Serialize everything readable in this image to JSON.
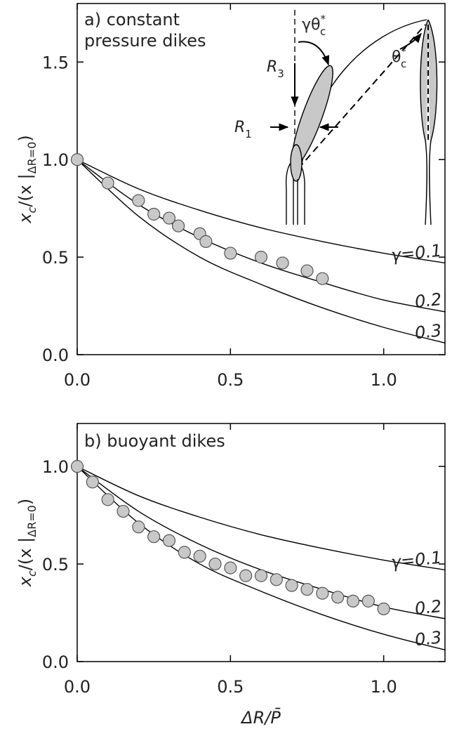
{
  "chart_data": [
    {
      "type": "scatter",
      "title_lines": [
        "a) constant",
        "pressure dikes"
      ],
      "ylabel_parts": [
        "x",
        "c",
        "/(x |",
        "ΔR=0",
        ")"
      ],
      "xlim": [
        0,
        1.2
      ],
      "ylim": [
        0,
        1.8
      ],
      "xticks": [
        {
          "value": 0,
          "label": "0.0"
        },
        {
          "value": 0.5,
          "label": "0.5"
        },
        {
          "value": 1,
          "label": "1.0"
        }
      ],
      "yticks": [
        {
          "value": 0,
          "label": "0.0"
        },
        {
          "value": 0.5,
          "label": "0.5"
        },
        {
          "value": 1,
          "label": "1.0"
        },
        {
          "value": 1.5,
          "label": "1.5"
        }
      ],
      "series": [
        {
          "name": "γ=0.1",
          "type": "line",
          "color": "#000000",
          "x": [
            0,
            0.2,
            0.4,
            0.6,
            0.8,
            1.0,
            1.2
          ],
          "values": [
            1,
            0.85,
            0.74,
            0.65,
            0.58,
            0.52,
            0.47
          ]
        },
        {
          "name": "0.2",
          "type": "line",
          "color": "#000000",
          "x": [
            0,
            0.2,
            0.4,
            0.6,
            0.8,
            1.0,
            1.2
          ],
          "values": [
            1,
            0.77,
            0.6,
            0.47,
            0.37,
            0.28,
            0.22
          ]
        },
        {
          "name": "0.3",
          "type": "line",
          "color": "#000000",
          "x": [
            0,
            0.2,
            0.4,
            0.6,
            0.8,
            1.0,
            1.2
          ],
          "values": [
            1,
            0.71,
            0.5,
            0.36,
            0.24,
            0.14,
            0.06
          ]
        },
        {
          "type": "scatter",
          "color": "#c8c8c8",
          "x": [
            0,
            0.1,
            0.2,
            0.25,
            0.3,
            0.33,
            0.4,
            0.42,
            0.5,
            0.6,
            0.67,
            0.75,
            0.8
          ],
          "values": [
            1,
            0.88,
            0.79,
            0.72,
            0.7,
            0.66,
            0.62,
            0.58,
            0.52,
            0.5,
            0.47,
            0.43,
            0.39
          ]
        }
      ],
      "annotations": [
        {
          "text": "γθ",
          "sup": "*",
          "sub": "c"
        },
        {
          "text": "R",
          "sub": "3"
        },
        {
          "text": "R",
          "sub": "1"
        },
        {
          "text": "θ",
          "sup": "*",
          "sub": "c"
        }
      ]
    },
    {
      "type": "scatter",
      "title_lines": [
        "b) buoyant dikes"
      ],
      "ylabel_parts": [
        "x",
        "c",
        "/(x |",
        "ΔR=0",
        ")"
      ],
      "xlabel": "ΔR/P̄",
      "xlim": [
        0,
        1.2
      ],
      "ylim": [
        0,
        1.22
      ],
      "xticks": [
        {
          "value": 0,
          "label": "0.0"
        },
        {
          "value": 0.5,
          "label": "0.5"
        },
        {
          "value": 1,
          "label": "1.0"
        }
      ],
      "yticks": [
        {
          "value": 0,
          "label": "0.0"
        },
        {
          "value": 0.5,
          "label": "0.5"
        },
        {
          "value": 1,
          "label": "1.0"
        }
      ],
      "series": [
        {
          "name": "γ=0.1",
          "type": "line",
          "color": "#000000",
          "x": [
            0,
            0.2,
            0.4,
            0.6,
            0.8,
            1.0,
            1.2
          ],
          "values": [
            1,
            0.85,
            0.74,
            0.65,
            0.58,
            0.52,
            0.47
          ]
        },
        {
          "name": "0.2",
          "type": "line",
          "color": "#000000",
          "x": [
            0,
            0.2,
            0.4,
            0.6,
            0.8,
            1.0,
            1.2
          ],
          "values": [
            1,
            0.77,
            0.6,
            0.47,
            0.37,
            0.28,
            0.22
          ]
        },
        {
          "name": "0.3",
          "type": "line",
          "color": "#000000",
          "x": [
            0,
            0.2,
            0.4,
            0.6,
            0.8,
            1.0,
            1.2
          ],
          "values": [
            1,
            0.71,
            0.5,
            0.36,
            0.24,
            0.14,
            0.06
          ]
        },
        {
          "type": "scatter",
          "color": "#c8c8c8",
          "x": [
            0,
            0.05,
            0.1,
            0.15,
            0.2,
            0.25,
            0.3,
            0.35,
            0.4,
            0.45,
            0.5,
            0.55,
            0.6,
            0.65,
            0.7,
            0.75,
            0.8,
            0.85,
            0.9,
            0.95,
            1.0
          ],
          "values": [
            1,
            0.92,
            0.83,
            0.77,
            0.69,
            0.64,
            0.62,
            0.56,
            0.54,
            0.5,
            0.48,
            0.44,
            0.44,
            0.42,
            0.39,
            0.37,
            0.35,
            0.33,
            0.31,
            0.31,
            0.27
          ]
        }
      ]
    }
  ]
}
